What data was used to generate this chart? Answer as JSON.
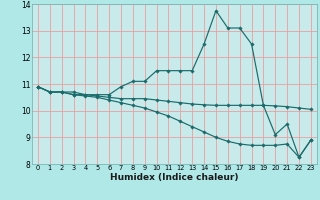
{
  "xlabel": "Humidex (Indice chaleur)",
  "xlim": [
    -0.5,
    23.5
  ],
  "ylim": [
    8,
    14
  ],
  "yticks": [
    8,
    9,
    10,
    11,
    12,
    13,
    14
  ],
  "xticks": [
    0,
    1,
    2,
    3,
    4,
    5,
    6,
    7,
    8,
    9,
    10,
    11,
    12,
    13,
    14,
    15,
    16,
    17,
    18,
    19,
    20,
    21,
    22,
    23
  ],
  "bg_color": "#b0e8e8",
  "plot_bg_color": "#c8eaea",
  "line_color": "#1a6b6b",
  "grid_color": "#e8a0a0",
  "lines": [
    [
      10.9,
      10.7,
      10.7,
      10.7,
      10.6,
      10.6,
      10.6,
      10.9,
      11.1,
      11.1,
      11.5,
      11.5,
      11.5,
      11.5,
      12.5,
      13.75,
      13.1,
      13.1,
      12.5,
      10.2,
      9.1,
      9.5,
      8.25,
      8.9
    ],
    [
      10.9,
      10.7,
      10.7,
      10.6,
      10.6,
      10.55,
      10.5,
      10.45,
      10.45,
      10.45,
      10.4,
      10.35,
      10.3,
      10.25,
      10.22,
      10.2,
      10.2,
      10.2,
      10.2,
      10.2,
      10.18,
      10.15,
      10.1,
      10.05
    ],
    [
      10.9,
      10.7,
      10.7,
      10.6,
      10.55,
      10.5,
      10.4,
      10.3,
      10.2,
      10.1,
      9.95,
      9.8,
      9.6,
      9.4,
      9.2,
      9.0,
      8.85,
      8.75,
      8.7,
      8.7,
      8.7,
      8.75,
      8.25,
      8.9
    ]
  ]
}
